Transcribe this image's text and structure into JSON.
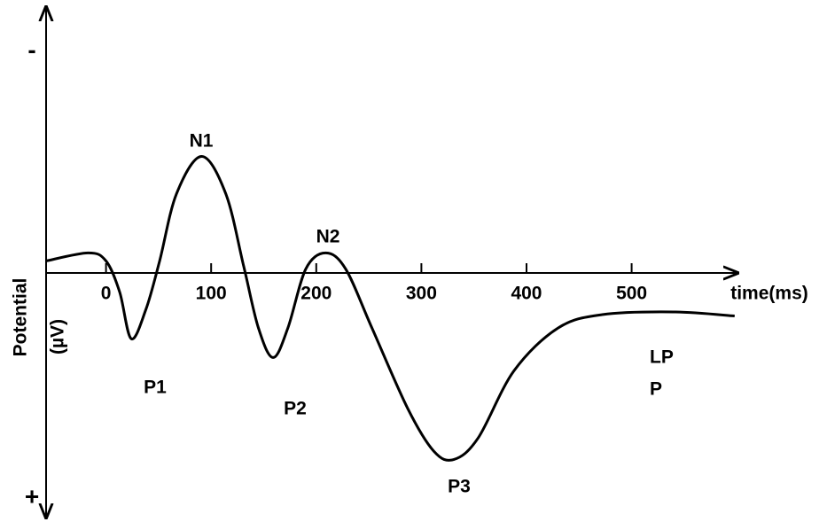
{
  "chart_data": {
    "type": "line",
    "x_label": "time(ms)",
    "y_label": [
      "Potential",
      "(µV)"
    ],
    "y_end_labels": {
      "top": "-",
      "bottom": "+"
    },
    "x": [
      -57,
      -17,
      0,
      13,
      24,
      38,
      51,
      67,
      91,
      114,
      131,
      145,
      159,
      173,
      190,
      209,
      228,
      253,
      287,
      312,
      331,
      354,
      388,
      430,
      472,
      540,
      598
    ],
    "series": [
      {
        "color": "#000000",
        "values": [
          -0.6,
          -0.9,
          -0.6,
          0.56,
          2.3,
          1.2,
          -0.6,
          -3.1,
          -4.5,
          -3.1,
          -0.4,
          1.9,
          3.0,
          1.9,
          -0.3,
          -0.9,
          -0.3,
          1.9,
          4.9,
          6.5,
          6.8,
          6.0,
          3.5,
          1.9,
          1.4,
          1.3,
          1.45
        ]
      }
    ],
    "xlim": [
      -57,
      599
    ],
    "xticks": [
      0,
      100,
      200,
      300,
      400,
      500
    ],
    "ylim": [
      9,
      -10
    ],
    "annotations": [
      "N1",
      "N2",
      "P1",
      "P2",
      "P3",
      "LP",
      "P"
    ]
  }
}
